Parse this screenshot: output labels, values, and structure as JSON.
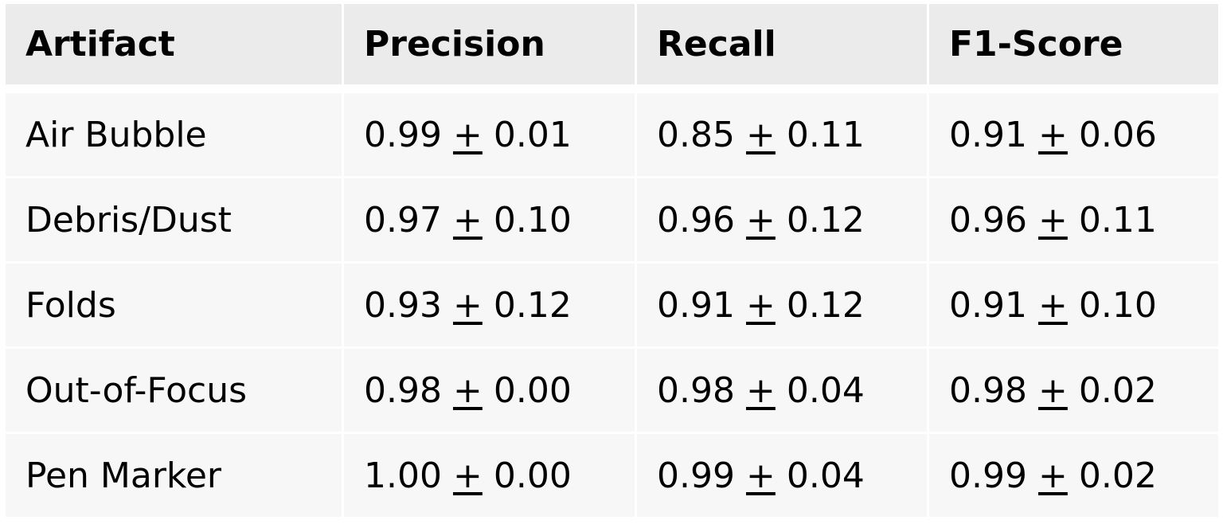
{
  "table": {
    "headers": [
      "Artifact",
      "Precision",
      "Recall",
      "F1-Score"
    ],
    "pm_symbol": "+",
    "rows": [
      {
        "artifact": "Air Bubble",
        "precision": {
          "mean": "0.99",
          "std": "0.01"
        },
        "recall": {
          "mean": "0.85",
          "std": "0.11"
        },
        "f1": {
          "mean": "0.91",
          "std": "0.06"
        }
      },
      {
        "artifact": "Debris/Dust",
        "precision": {
          "mean": "0.97",
          "std": "0.10"
        },
        "recall": {
          "mean": "0.96",
          "std": "0.12"
        },
        "f1": {
          "mean": "0.96",
          "std": "0.11"
        }
      },
      {
        "artifact": "Folds",
        "precision": {
          "mean": "0.93",
          "std": "0.12"
        },
        "recall": {
          "mean": "0.91",
          "std": "0.12"
        },
        "f1": {
          "mean": "0.91",
          "std": "0.10"
        }
      },
      {
        "artifact": "Out-of-Focus",
        "precision": {
          "mean": "0.98",
          "std": "0.00"
        },
        "recall": {
          "mean": "0.98",
          "std": "0.04"
        },
        "f1": {
          "mean": "0.98",
          "std": "0.02"
        }
      },
      {
        "artifact": "Pen Marker",
        "precision": {
          "mean": "1.00",
          "std": "0.00"
        },
        "recall": {
          "mean": "0.99",
          "std": "0.04"
        },
        "f1": {
          "mean": "0.99",
          "std": "0.02"
        }
      }
    ]
  },
  "colors": {
    "header_bg": "#ebebeb",
    "row_bg": "#f7f7f7"
  }
}
